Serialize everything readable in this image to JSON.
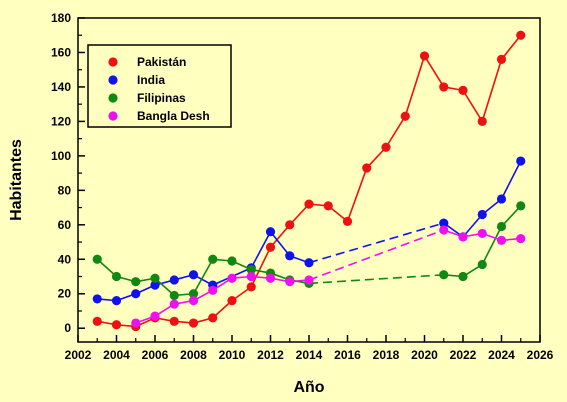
{
  "chart_data": {
    "type": "line",
    "xlabel": "Año",
    "ylabel": "Habitantes",
    "xlim": [
      2002,
      2026
    ],
    "ylim": [
      -8,
      180
    ],
    "xticks": [
      2002,
      2004,
      2006,
      2008,
      2010,
      2012,
      2014,
      2016,
      2018,
      2020,
      2022,
      2024,
      2026
    ],
    "yticks": [
      0,
      20,
      40,
      60,
      80,
      100,
      120,
      140,
      160,
      180
    ],
    "grid": false,
    "legend_position": "top-left",
    "series": [
      {
        "name": "Pakistán",
        "color": "#ee1111",
        "points": [
          [
            2003,
            4
          ],
          [
            2004,
            2
          ],
          [
            2005,
            1
          ],
          [
            2006,
            6
          ],
          [
            2007,
            4
          ],
          [
            2008,
            3
          ],
          [
            2009,
            6
          ],
          [
            2010,
            16
          ],
          [
            2011,
            24
          ],
          [
            2012,
            47
          ],
          [
            2013,
            60
          ],
          [
            2014,
            72
          ],
          [
            2015,
            71
          ],
          [
            2016,
            62
          ],
          [
            2017,
            93
          ],
          [
            2018,
            105
          ],
          [
            2019,
            123
          ],
          [
            2020,
            158
          ],
          [
            2021,
            140
          ],
          [
            2022,
            138
          ],
          [
            2023,
            120
          ],
          [
            2024,
            156
          ],
          [
            2025,
            170
          ]
        ],
        "dashed_from_x": null
      },
      {
        "name": "India",
        "color": "#1111ee",
        "points": [
          [
            2003,
            17
          ],
          [
            2004,
            16
          ],
          [
            2005,
            20
          ],
          [
            2006,
            25
          ],
          [
            2007,
            28
          ],
          [
            2008,
            31
          ],
          [
            2009,
            25
          ],
          [
            2010,
            null
          ],
          [
            2011,
            35
          ],
          [
            2012,
            56
          ],
          [
            2013,
            42
          ],
          [
            2014,
            38
          ],
          [
            2021,
            61
          ],
          [
            2022,
            53
          ],
          [
            2023,
            66
          ],
          [
            2024,
            75
          ],
          [
            2025,
            97
          ]
        ],
        "dashed_from_x": 2014
      },
      {
        "name": "Filipinas",
        "color": "#118811",
        "points": [
          [
            2003,
            40
          ],
          [
            2004,
            30
          ],
          [
            2005,
            27
          ],
          [
            2006,
            29
          ],
          [
            2007,
            19
          ],
          [
            2008,
            20
          ],
          [
            2009,
            40
          ],
          [
            2010,
            39
          ],
          [
            2011,
            34
          ],
          [
            2012,
            32
          ],
          [
            2013,
            28
          ],
          [
            2014,
            26
          ],
          [
            2021,
            31
          ],
          [
            2022,
            30
          ],
          [
            2023,
            37
          ],
          [
            2024,
            59
          ],
          [
            2025,
            71
          ]
        ],
        "dashed_from_x": 2014
      },
      {
        "name": "Bangla Desh",
        "color": "#ee11ee",
        "points": [
          [
            2005,
            3
          ],
          [
            2006,
            7
          ],
          [
            2007,
            14
          ],
          [
            2008,
            16
          ],
          [
            2009,
            22
          ],
          [
            2010,
            29
          ],
          [
            2011,
            30
          ],
          [
            2012,
            29
          ],
          [
            2013,
            27
          ],
          [
            2014,
            28
          ],
          [
            2021,
            57
          ],
          [
            2022,
            53
          ],
          [
            2023,
            55
          ],
          [
            2024,
            51
          ],
          [
            2025,
            52
          ]
        ],
        "dashed_from_x": 2014
      }
    ]
  }
}
